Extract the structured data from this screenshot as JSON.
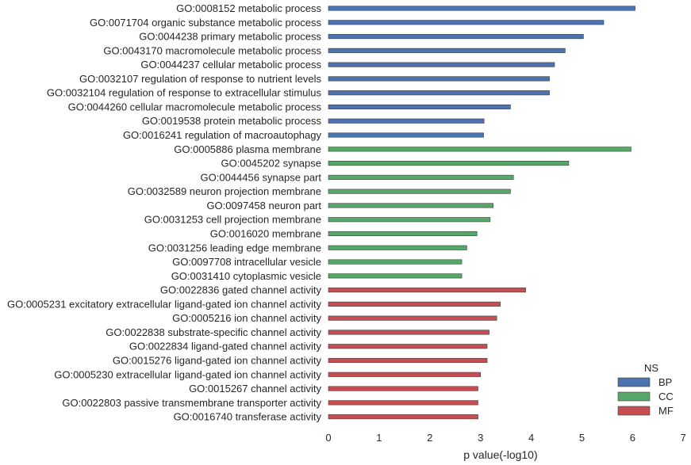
{
  "chart_data": {
    "type": "bar",
    "orientation": "horizontal",
    "xlabel": "p value(-log10)",
    "ylabel": "",
    "xlim": [
      0,
      7
    ],
    "xticks": [
      "0",
      "1",
      "2",
      "3",
      "4",
      "5",
      "6",
      "7"
    ],
    "grid": false,
    "legend": {
      "title": "NS",
      "position": "bottom-right",
      "entries": [
        {
          "name": "BP",
          "color": "#4c72b0"
        },
        {
          "name": "CC",
          "color": "#55a868"
        },
        {
          "name": "MF",
          "color": "#c44e52"
        }
      ]
    },
    "bars": [
      {
        "label": "GO:0008152 metabolic process",
        "value": 6.05,
        "group": "BP"
      },
      {
        "label": "GO:0071704 organic substance metabolic process",
        "value": 5.43,
        "group": "BP"
      },
      {
        "label": "GO:0044238 primary metabolic process",
        "value": 5.03,
        "group": "BP"
      },
      {
        "label": "GO:0043170 macromolecule metabolic process",
        "value": 4.67,
        "group": "BP"
      },
      {
        "label": "GO:0044237 cellular metabolic process",
        "value": 4.46,
        "group": "BP"
      },
      {
        "label": "GO:0032107 regulation of response to nutrient levels",
        "value": 4.36,
        "group": "BP"
      },
      {
        "label": "GO:0032104 regulation of response to extracellular stimulus",
        "value": 4.36,
        "group": "BP"
      },
      {
        "label": "GO:0044260 cellular macromolecule metabolic process",
        "value": 3.59,
        "group": "BP"
      },
      {
        "label": "GO:0019538 protein metabolic process",
        "value": 3.07,
        "group": "BP"
      },
      {
        "label": "GO:0016241 regulation of macroautophagy",
        "value": 3.06,
        "group": "BP"
      },
      {
        "label": "GO:0005886 plasma membrane",
        "value": 5.97,
        "group": "CC"
      },
      {
        "label": "GO:0045202 synapse",
        "value": 4.74,
        "group": "CC"
      },
      {
        "label": "GO:0044456 synapse part",
        "value": 3.65,
        "group": "CC"
      },
      {
        "label": "GO:0032589 neuron projection membrane",
        "value": 3.59,
        "group": "CC"
      },
      {
        "label": "GO:0097458 neuron part",
        "value": 3.25,
        "group": "CC"
      },
      {
        "label": "GO:0031253 cell projection membrane",
        "value": 3.19,
        "group": "CC"
      },
      {
        "label": "GO:0016020 membrane",
        "value": 2.93,
        "group": "CC"
      },
      {
        "label": "GO:0031256 leading edge membrane",
        "value": 2.73,
        "group": "CC"
      },
      {
        "label": "GO:0097708 intracellular vesicle",
        "value": 2.63,
        "group": "CC"
      },
      {
        "label": "GO:0031410 cytoplasmic vesicle",
        "value": 2.63,
        "group": "CC"
      },
      {
        "label": "GO:0022836 gated channel activity",
        "value": 3.89,
        "group": "MF"
      },
      {
        "label": "GO:0005231 excitatory extracellular ligand-gated ion channel activity",
        "value": 3.39,
        "group": "MF"
      },
      {
        "label": "GO:0005216 ion channel activity",
        "value": 3.32,
        "group": "MF"
      },
      {
        "label": "GO:0022838 substrate-specific channel activity",
        "value": 3.17,
        "group": "MF"
      },
      {
        "label": "GO:0022834 ligand-gated channel activity",
        "value": 3.13,
        "group": "MF"
      },
      {
        "label": "GO:0015276 ligand-gated ion channel activity",
        "value": 3.13,
        "group": "MF"
      },
      {
        "label": "GO:0005230 extracellular ligand-gated ion channel activity",
        "value": 3.0,
        "group": "MF"
      },
      {
        "label": "GO:0015267 channel activity",
        "value": 2.95,
        "group": "MF"
      },
      {
        "label": "GO:0022803 passive transmembrane transporter activity",
        "value": 2.95,
        "group": "MF"
      },
      {
        "label": "GO:0016740 transferase activity",
        "value": 2.95,
        "group": "MF"
      }
    ]
  }
}
